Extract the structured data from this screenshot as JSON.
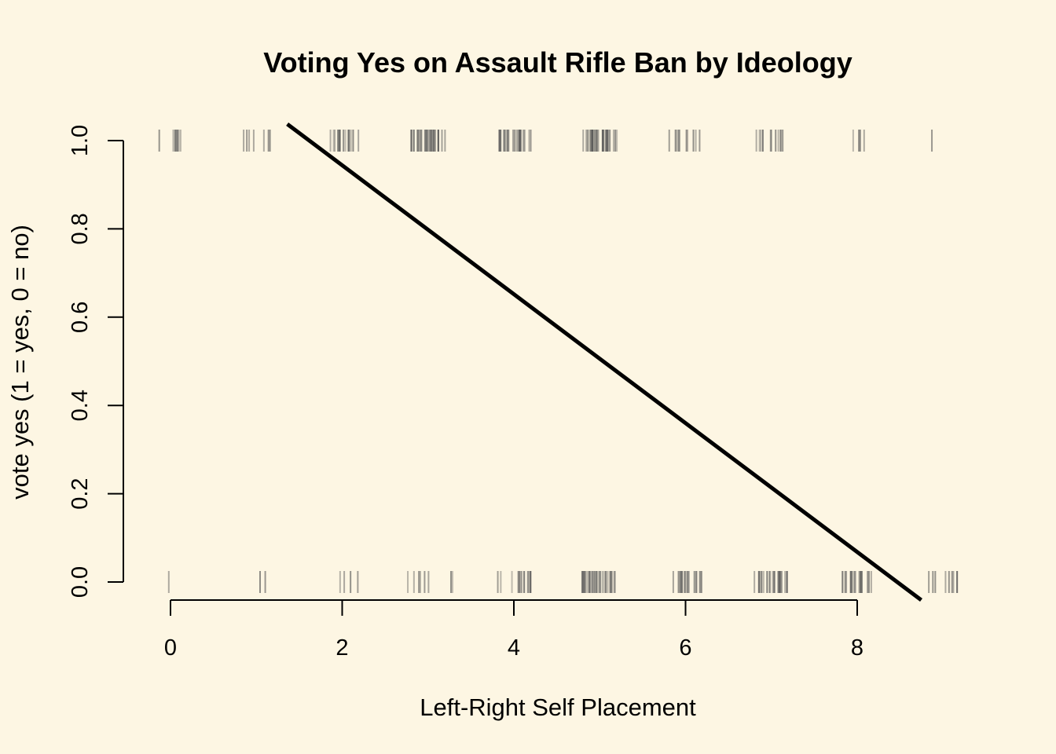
{
  "chart_data": {
    "type": "scatter",
    "title": "Voting Yes on Assault Rifle Ban by Ideology",
    "xlabel": "Left-Right Self Placement",
    "ylabel": "vote yes (1 = yes, 0 = no)",
    "xlim": [
      -0.55,
      9.3
    ],
    "ylim": [
      -0.04,
      1.04
    ],
    "x_ticks": [
      0,
      2,
      4,
      6,
      8
    ],
    "y_ticks": [
      0.0,
      0.2,
      0.4,
      0.6,
      0.8,
      1.0
    ],
    "x_tick_labels": [
      "0",
      "2",
      "4",
      "6",
      "8"
    ],
    "y_tick_labels": [
      "0.0",
      "0.2",
      "0.4",
      "0.6",
      "0.8",
      "1.0"
    ],
    "grid": false,
    "legend": "none",
    "colors": {
      "background": "#fdf6e3",
      "line": "#000000",
      "rug": "#555555"
    },
    "regression_line": {
      "intercept": 1.236,
      "slope": -0.146
    },
    "jittered_points": {
      "yes": [
        {
          "center": 0,
          "count": 8,
          "jitter": 0.2
        },
        {
          "center": 1,
          "count": 7,
          "jitter": 0.19
        },
        {
          "center": 2,
          "count": 18,
          "jitter": 0.2
        },
        {
          "center": 3,
          "count": 28,
          "jitter": 0.2
        },
        {
          "center": 4,
          "count": 26,
          "jitter": 0.21
        },
        {
          "center": 5,
          "count": 30,
          "jitter": 0.21
        },
        {
          "center": 6,
          "count": 10,
          "jitter": 0.2
        },
        {
          "center": 7,
          "count": 12,
          "jitter": 0.2
        },
        {
          "center": 8,
          "count": 5,
          "jitter": 0.13
        },
        {
          "center": 8.87,
          "count": 1,
          "jitter": 0
        }
      ],
      "no": [
        {
          "center": -0.02,
          "count": 1,
          "jitter": 0
        },
        {
          "center": 1.08,
          "count": 2,
          "jitter": 0.04
        },
        {
          "center": 2.05,
          "count": 4,
          "jitter": 0.14
        },
        {
          "center": 2.9,
          "count": 6,
          "jitter": 0.15
        },
        {
          "center": 3.3,
          "count": 2,
          "jitter": 0.04
        },
        {
          "center": 4,
          "count": 14,
          "jitter": 0.2
        },
        {
          "center": 5,
          "count": 32,
          "jitter": 0.21
        },
        {
          "center": 6,
          "count": 18,
          "jitter": 0.2
        },
        {
          "center": 7,
          "count": 26,
          "jitter": 0.2
        },
        {
          "center": 8,
          "count": 20,
          "jitter": 0.2
        },
        {
          "center": 9,
          "count": 10,
          "jitter": 0.21
        }
      ]
    }
  }
}
